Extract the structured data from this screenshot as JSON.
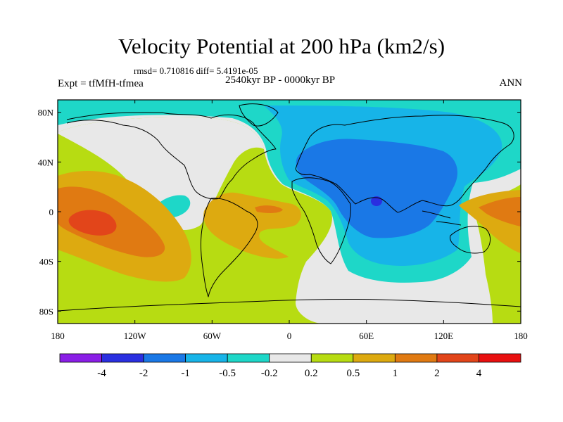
{
  "title": "Velocity Potential at 200 hPa (km2/s)",
  "stats": "rmsd= 0.710816 diff= 5.4191e-05",
  "experiment": "Expt = tfMfH-tfmea",
  "period": "2540kyr BP - 0000kyr BP",
  "season": "ANN",
  "map": {
    "lon_ticks": [
      "180",
      "120W",
      "60W",
      "0",
      "60E",
      "120E",
      "180"
    ],
    "lat_ticks": [
      "80N",
      "40N",
      "0",
      "40S",
      "80S"
    ]
  },
  "colorbar": {
    "colors": [
      "#8a1ee6",
      "#2a2fe0",
      "#1a78e6",
      "#17b4e8",
      "#1ed7c8",
      "#e8e8e8",
      "#b7dc12",
      "#ddaa10",
      "#e07a12",
      "#e2451a",
      "#e81010"
    ],
    "labels": [
      "-4",
      "-2",
      "-1",
      "-0.5",
      "-0.2",
      "0.2",
      "0.5",
      "1",
      "2",
      "4"
    ]
  },
  "colors": {
    "background": "#ffffff",
    "coastline": "#000000"
  }
}
